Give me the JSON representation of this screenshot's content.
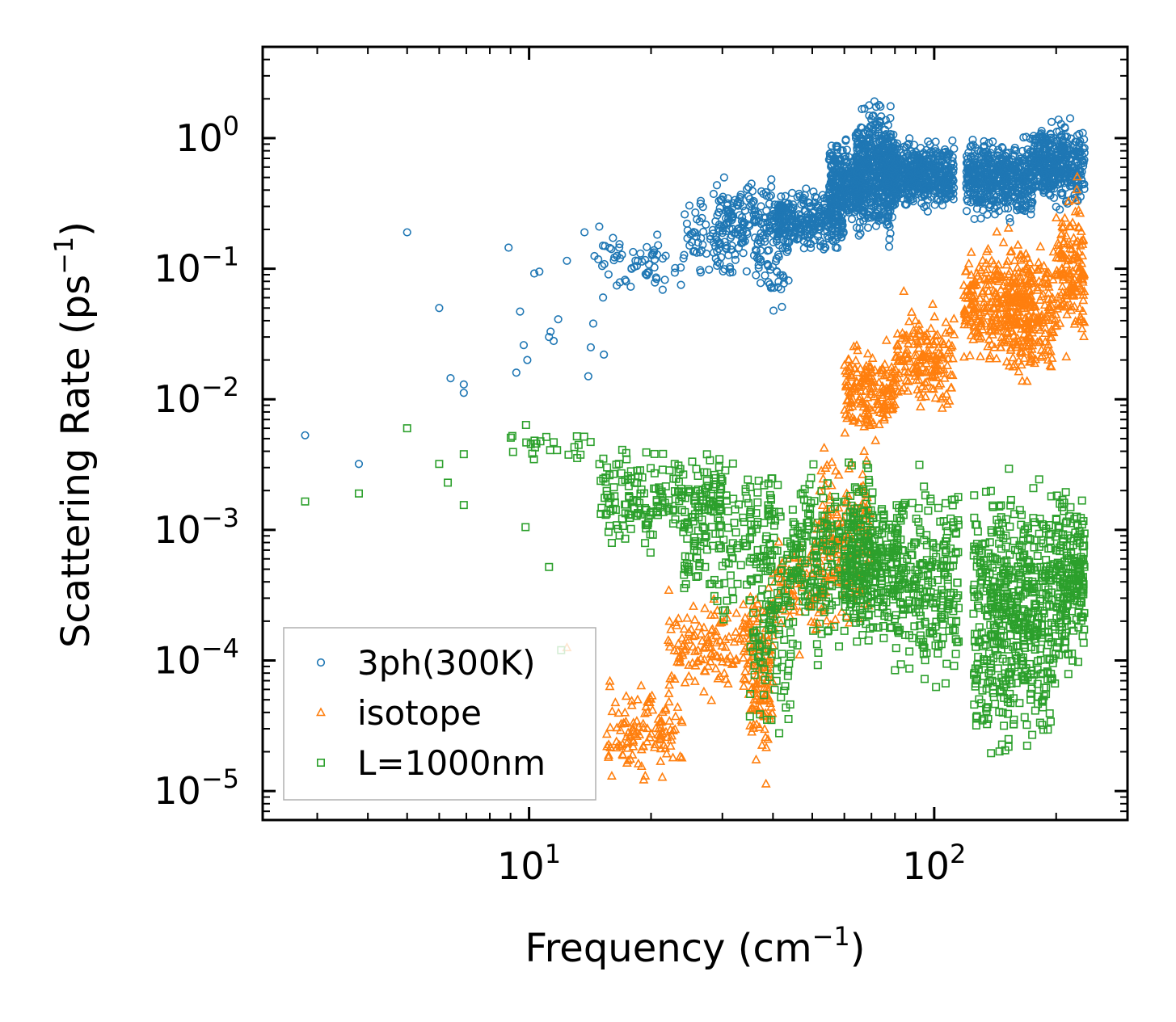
{
  "chart_data": {
    "type": "scatter",
    "title": "",
    "xlabel": {
      "text": "Frequency (cm",
      "sup": "−1",
      "tail": ")"
    },
    "ylabel": {
      "text": "Scattering Rate (ps",
      "sup": "−1",
      "tail": ")"
    },
    "xscale": "log",
    "yscale": "log",
    "xlim": [
      2.2,
      300
    ],
    "ylim": [
      6e-06,
      5
    ],
    "x_ticks": [
      {
        "value": 10,
        "base": "10",
        "exp": "1"
      },
      {
        "value": 100,
        "base": "10",
        "exp": "2"
      }
    ],
    "y_ticks": [
      {
        "value": 1,
        "base": "10",
        "exp": "0"
      },
      {
        "value": 0.1,
        "base": "10",
        "exp": "−1"
      },
      {
        "value": 0.01,
        "base": "10",
        "exp": "−2"
      },
      {
        "value": 0.001,
        "base": "10",
        "exp": "−3"
      },
      {
        "value": 0.0001,
        "base": "10",
        "exp": "−4"
      },
      {
        "value": 1e-05,
        "base": "10",
        "exp": "−5"
      }
    ],
    "legend_position": "lower-left",
    "series": [
      {
        "name": "3ph(300K)",
        "marker": "circle",
        "color": "#1f77b4",
        "points": [
          [
            2.8,
            0.0053
          ],
          [
            3.8,
            0.0032
          ],
          [
            5,
            0.19
          ],
          [
            6,
            0.05
          ],
          [
            6.4,
            0.0145
          ],
          [
            6.9,
            0.013
          ],
          [
            6.9,
            0.0112
          ],
          [
            8.9,
            0.145
          ],
          [
            9.3,
            0.016
          ],
          [
            9.5,
            0.047
          ],
          [
            9.7,
            0.026
          ],
          [
            9.9,
            0.02
          ],
          [
            10.3,
            0.092
          ],
          [
            10.6,
            0.095
          ],
          [
            11.2,
            0.03
          ],
          [
            11.3,
            0.033
          ],
          [
            11.5,
            0.028
          ],
          [
            11.8,
            0.041
          ],
          [
            12.4,
            0.115
          ],
          [
            13.7,
            0.19
          ],
          [
            14.0,
            0.015
          ],
          [
            14.2,
            0.025
          ],
          [
            14.4,
            0.038
          ],
          [
            14.5,
            0.125
          ],
          [
            14.9,
            0.21
          ],
          [
            15.3,
            0.022
          ]
        ],
        "clusters": [
          [
            [
              14.5,
              24
            ],
            [
              0.05,
              0.22
            ],
            60
          ],
          [
            [
              24,
              34
            ],
            [
              0.07,
              0.45
            ],
            90
          ],
          [
            [
              29,
              40
            ],
            [
              0.08,
              0.72
            ],
            120
          ],
          [
            [
              36,
              44
            ],
            [
              0.04,
              0.5
            ],
            70
          ],
          [
            [
              40,
              60
            ],
            [
              0.12,
              0.45
            ],
            300
          ],
          [
            [
              55,
              66
            ],
            [
              0.18,
              1.1
            ],
            300
          ],
          [
            [
              64,
              80
            ],
            [
              0.12,
              2.6
            ],
            500
          ],
          [
            [
              76,
              112
            ],
            [
              0.25,
              1.1
            ],
            500
          ],
          [
            [
              120,
              175
            ],
            [
              0.2,
              1.2
            ],
            500
          ],
          [
            [
              175,
              235
            ],
            [
              0.25,
              1.6
            ],
            400
          ]
        ]
      },
      {
        "name": "isotope",
        "marker": "triangle",
        "color": "#ff7f0e",
        "points": [
          [
            12.4,
            0.000125
          ],
          [
            16,
            1.3e-05
          ],
          [
            17,
            1.9e-05
          ]
        ],
        "clusters": [
          [
            [
              15.5,
              24
            ],
            [
              1e-05,
              8e-05
            ],
            120
          ],
          [
            [
              22,
              36
            ],
            [
              4e-05,
              0.0004
            ],
            150
          ],
          [
            [
              35,
              40
            ],
            [
              1e-05,
              0.0006
            ],
            120
          ],
          [
            [
              40,
              52
            ],
            [
              0.0001,
              0.0013
            ],
            80
          ],
          [
            [
              52,
              70
            ],
            [
              0.0001,
              0.006
            ],
            180
          ],
          [
            [
              60,
              80
            ],
            [
              0.004,
              0.035
            ],
            180
          ],
          [
            [
              80,
              112
            ],
            [
              0.006,
              0.07
            ],
            180
          ],
          [
            [
              118,
              175
            ],
            [
              0.015,
              0.2
            ],
            300
          ],
          [
            [
              150,
              200
            ],
            [
              0.01,
              0.24
            ],
            200
          ],
          [
            [
              200,
              235
            ],
            [
              0.015,
              0.62
            ],
            150
          ]
        ]
      },
      {
        "name": "L=1000nm",
        "marker": "square",
        "color": "#2ca02c",
        "points": [
          [
            2.8,
            0.00165
          ],
          [
            3.8,
            0.0019
          ],
          [
            5,
            0.006
          ],
          [
            6,
            0.0032
          ],
          [
            6.3,
            0.0023
          ],
          [
            6.9,
            0.0038
          ],
          [
            6.9,
            0.00155
          ],
          [
            9.8,
            0.00105
          ],
          [
            11.2,
            0.00052
          ],
          [
            12.0,
            0.00012
          ]
        ],
        "clusters": [
          [
            [
              9,
              15
            ],
            [
              0.0026,
              0.0068
            ],
            25
          ],
          [
            [
              15,
              30
            ],
            [
              0.0006,
              0.005
            ],
            200
          ],
          [
            [
              24,
              40
            ],
            [
              0.00013,
              0.0055
            ],
            150
          ],
          [
            [
              35,
              45
            ],
            [
              1.5e-05,
              0.005
            ],
            150
          ],
          [
            [
              44,
              70
            ],
            [
              8e-05,
              0.005
            ],
            250
          ],
          [
            [
              60,
              82
            ],
            [
              8e-05,
              0.004
            ],
            250
          ],
          [
            [
              80,
              115
            ],
            [
              4e-05,
              0.004
            ],
            250
          ],
          [
            [
              125,
              160
            ],
            [
              1e-05,
              0.005
            ],
            300
          ],
          [
            [
              160,
              200
            ],
            [
              1.3e-05,
              0.004
            ],
            250
          ],
          [
            [
              200,
              235
            ],
            [
              5e-05,
              0.0035
            ],
            200
          ]
        ]
      }
    ]
  }
}
